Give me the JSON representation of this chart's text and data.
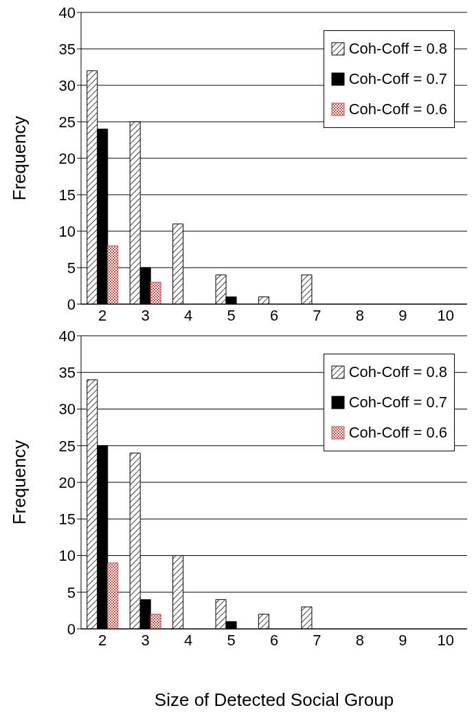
{
  "chart_data": [
    {
      "type": "bar",
      "ylabel": "Frequency",
      "categories": [
        "2",
        "3",
        "4",
        "5",
        "6",
        "7",
        "8",
        "9",
        "10"
      ],
      "ylim": [
        0,
        40
      ],
      "yticks": [
        0,
        5,
        10,
        15,
        20,
        25,
        30,
        35,
        40
      ],
      "grid": "y",
      "legend": "top right",
      "series": [
        {
          "name": "Coh-Coff = 0.8",
          "color": "#000000",
          "values": [
            32,
            25,
            11,
            4,
            1,
            4,
            0,
            0,
            0
          ]
        },
        {
          "name": "Coh-Coff = 0.7",
          "color": "#000000",
          "values": [
            24,
            5,
            0,
            1,
            0,
            0,
            0,
            0,
            0
          ]
        },
        {
          "name": "Coh-Coff = 0.6",
          "color": "#c0504d",
          "values": [
            8,
            3,
            0,
            0,
            0,
            0,
            0,
            0,
            0
          ]
        }
      ]
    },
    {
      "type": "bar",
      "ylabel": "Frequency",
      "xlabel": "Size of Detected Social Group",
      "categories": [
        "2",
        "3",
        "4",
        "5",
        "6",
        "7",
        "8",
        "9",
        "10"
      ],
      "ylim": [
        0,
        40
      ],
      "yticks": [
        0,
        5,
        10,
        15,
        20,
        25,
        30,
        35,
        40
      ],
      "grid": "y",
      "legend": "top right",
      "series": [
        {
          "name": "Coh-Coff = 0.8",
          "color": "#000000",
          "values": [
            34,
            24,
            10,
            4,
            2,
            3,
            0,
            0,
            0
          ]
        },
        {
          "name": "Coh-Coff = 0.7",
          "color": "#000000",
          "values": [
            25,
            4,
            0,
            1,
            0,
            0,
            0,
            0,
            0
          ]
        },
        {
          "name": "Coh-Coff = 0.6",
          "color": "#c0504d",
          "values": [
            9,
            2,
            0,
            0,
            0,
            0,
            0,
            0,
            0
          ]
        }
      ]
    }
  ]
}
